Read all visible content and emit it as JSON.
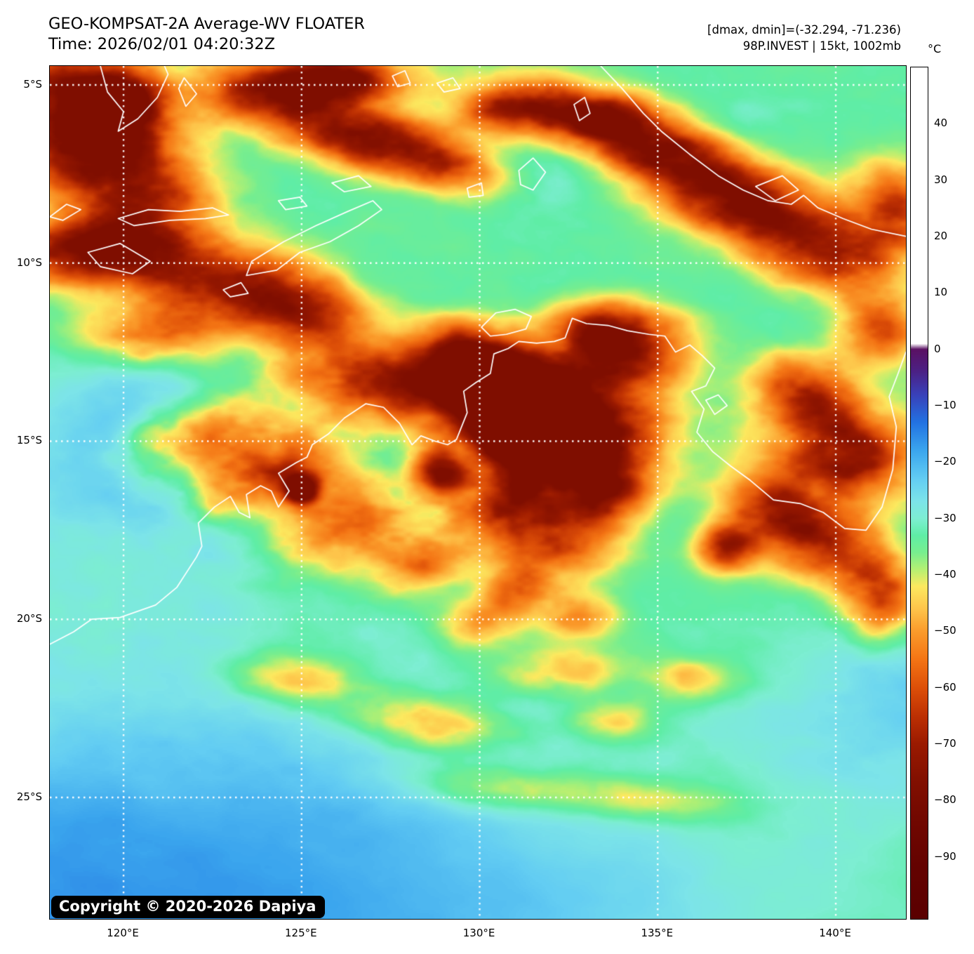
{
  "header": {
    "title": "GEO-KOMPSAT-2A Average-WV FLOATER",
    "time_line": "Time: 2026/02/01 04:20:32Z",
    "dmax_dmin_line": "[dmax, dmin]=(-32.294, -71.236)",
    "storm_line": "98P.INVEST | 15kt, 1002mb"
  },
  "map": {
    "copyright": "Copyright © 2020-2026 Dapiya",
    "bounds": {
      "lon_min": 117.93,
      "lon_max": 141.97,
      "lat_min": 4.468,
      "lat_max": 28.41
    },
    "y_axis": {
      "labels": [
        "5°S",
        "10°S",
        "15°S",
        "20°S",
        "25°S"
      ],
      "values": [
        5,
        10,
        15,
        20,
        25
      ]
    },
    "x_axis": {
      "labels": [
        "120°E",
        "125°E",
        "130°E",
        "135°E",
        "140°E"
      ],
      "values": [
        120,
        125,
        130,
        135,
        140
      ]
    },
    "gridline_color": "#ffffff",
    "coastline_color": "#ffffff",
    "frame_color": "#000000",
    "base_temp": -33.5,
    "coastlines": [
      [
        [
          117.93,
          20.7
        ],
        [
          118.6,
          20.35
        ],
        [
          119.1,
          20.0
        ],
        [
          119.9,
          19.95
        ],
        [
          120.9,
          19.6
        ],
        [
          121.5,
          19.1
        ],
        [
          122.05,
          18.25
        ],
        [
          122.2,
          17.95
        ],
        [
          122.1,
          17.3
        ],
        [
          122.55,
          16.85
        ],
        [
          123.0,
          16.55
        ],
        [
          123.25,
          17.0
        ],
        [
          123.55,
          17.15
        ],
        [
          123.45,
          16.5
        ],
        [
          123.85,
          16.25
        ],
        [
          124.15,
          16.4
        ],
        [
          124.35,
          16.85
        ],
        [
          124.65,
          16.4
        ],
        [
          124.35,
          15.9
        ],
        [
          124.85,
          15.6
        ],
        [
          125.15,
          15.45
        ],
        [
          125.3,
          15.1
        ],
        [
          125.75,
          14.8
        ],
        [
          126.2,
          14.35
        ],
        [
          126.8,
          13.95
        ],
        [
          127.3,
          14.05
        ],
        [
          127.75,
          14.5
        ],
        [
          128.1,
          15.1
        ],
        [
          128.35,
          14.85
        ],
        [
          128.75,
          15.0
        ],
        [
          129.1,
          15.1
        ],
        [
          129.35,
          14.95
        ],
        [
          129.65,
          14.2
        ],
        [
          129.55,
          13.6
        ],
        [
          129.9,
          13.35
        ],
        [
          130.3,
          13.1
        ],
        [
          130.4,
          12.55
        ],
        [
          130.8,
          12.4
        ],
        [
          131.1,
          12.2
        ],
        [
          131.6,
          12.25
        ],
        [
          132.1,
          12.2
        ],
        [
          132.4,
          12.1
        ],
        [
          132.6,
          11.55
        ],
        [
          133.0,
          11.7
        ],
        [
          133.6,
          11.75
        ],
        [
          134.15,
          11.9
        ],
        [
          134.75,
          12.0
        ],
        [
          135.2,
          12.05
        ],
        [
          135.5,
          12.5
        ],
        [
          135.9,
          12.3
        ],
        [
          136.25,
          12.6
        ],
        [
          136.6,
          12.95
        ],
        [
          136.35,
          13.45
        ],
        [
          135.95,
          13.6
        ],
        [
          136.3,
          14.1
        ],
        [
          136.1,
          14.75
        ],
        [
          136.55,
          15.3
        ],
        [
          137.05,
          15.7
        ],
        [
          137.6,
          16.1
        ],
        [
          138.25,
          16.65
        ],
        [
          139.0,
          16.75
        ],
        [
          139.65,
          17.0
        ],
        [
          140.25,
          17.45
        ],
        [
          140.85,
          17.5
        ],
        [
          141.3,
          16.85
        ],
        [
          141.6,
          15.8
        ],
        [
          141.7,
          14.6
        ],
        [
          141.5,
          13.75
        ],
        [
          141.75,
          13.1
        ],
        [
          141.97,
          12.5
        ]
      ],
      [
        [
          130.05,
          11.8
        ],
        [
          130.45,
          11.4
        ],
        [
          131.0,
          11.3
        ],
        [
          131.45,
          11.5
        ],
        [
          131.3,
          11.85
        ],
        [
          130.75,
          12.0
        ],
        [
          130.3,
          12.05
        ],
        [
          130.05,
          11.8
        ]
      ],
      [
        [
          136.35,
          13.85
        ],
        [
          136.7,
          13.7
        ],
        [
          136.95,
          14.0
        ],
        [
          136.6,
          14.25
        ],
        [
          136.35,
          13.85
        ]
      ],
      [
        [
          123.45,
          10.35
        ],
        [
          124.3,
          10.2
        ],
        [
          124.95,
          9.7
        ],
        [
          125.8,
          9.4
        ],
        [
          126.6,
          8.95
        ],
        [
          127.25,
          8.5
        ],
        [
          127.0,
          8.25
        ],
        [
          126.3,
          8.55
        ],
        [
          125.4,
          8.95
        ],
        [
          124.5,
          9.4
        ],
        [
          123.6,
          9.95
        ],
        [
          123.45,
          10.35
        ]
      ],
      [
        [
          119.0,
          9.7
        ],
        [
          119.9,
          9.45
        ],
        [
          120.75,
          9.95
        ],
        [
          120.25,
          10.3
        ],
        [
          119.35,
          10.1
        ],
        [
          119.0,
          9.7
        ]
      ],
      [
        [
          119.85,
          8.75
        ],
        [
          120.7,
          8.5
        ],
        [
          121.6,
          8.55
        ],
        [
          122.5,
          8.45
        ],
        [
          122.95,
          8.65
        ],
        [
          122.3,
          8.75
        ],
        [
          121.3,
          8.8
        ],
        [
          120.3,
          8.95
        ],
        [
          119.85,
          8.75
        ]
      ],
      [
        [
          124.35,
          8.25
        ],
        [
          124.95,
          8.15
        ],
        [
          125.15,
          8.4
        ],
        [
          124.55,
          8.5
        ],
        [
          124.35,
          8.25
        ]
      ],
      [
        [
          125.85,
          7.75
        ],
        [
          126.6,
          7.55
        ],
        [
          126.95,
          7.85
        ],
        [
          126.2,
          8.0
        ],
        [
          125.85,
          7.75
        ]
      ],
      [
        [
          129.65,
          7.9
        ],
        [
          130.05,
          7.75
        ],
        [
          130.1,
          8.1
        ],
        [
          129.7,
          8.15
        ],
        [
          129.65,
          7.9
        ]
      ],
      [
        [
          131.1,
          7.4
        ],
        [
          131.5,
          7.05
        ],
        [
          131.85,
          7.45
        ],
        [
          131.5,
          7.95
        ],
        [
          131.15,
          7.8
        ],
        [
          131.1,
          7.4
        ]
      ],
      [
        [
          132.65,
          5.55
        ],
        [
          132.95,
          5.35
        ],
        [
          133.1,
          5.8
        ],
        [
          132.8,
          6.0
        ],
        [
          132.65,
          5.55
        ]
      ],
      [
        [
          119.35,
          4.468
        ],
        [
          119.55,
          5.2
        ],
        [
          120.0,
          5.75
        ],
        [
          119.85,
          6.3
        ],
        [
          120.4,
          5.95
        ],
        [
          120.95,
          5.35
        ],
        [
          121.25,
          4.7
        ],
        [
          121.15,
          4.468
        ]
      ],
      [
        [
          121.7,
          4.8
        ],
        [
          122.05,
          5.25
        ],
        [
          121.75,
          5.6
        ],
        [
          121.55,
          5.1
        ],
        [
          121.7,
          4.8
        ]
      ],
      [
        [
          127.55,
          4.75
        ],
        [
          127.9,
          4.6
        ],
        [
          128.05,
          4.95
        ],
        [
          127.7,
          5.05
        ],
        [
          127.55,
          4.75
        ]
      ],
      [
        [
          128.8,
          4.95
        ],
        [
          129.25,
          4.8
        ],
        [
          129.45,
          5.1
        ],
        [
          129.0,
          5.2
        ],
        [
          128.8,
          4.95
        ]
      ],
      [
        [
          117.93,
          8.7
        ],
        [
          118.4,
          8.35
        ],
        [
          118.8,
          8.5
        ],
        [
          118.3,
          8.8
        ],
        [
          117.93,
          8.7
        ]
      ],
      [
        [
          122.8,
          10.75
        ],
        [
          123.3,
          10.55
        ],
        [
          123.5,
          10.85
        ],
        [
          123.0,
          10.95
        ],
        [
          122.8,
          10.75
        ]
      ],
      [
        [
          133.4,
          4.468
        ],
        [
          134.0,
          5.1
        ],
        [
          134.6,
          5.8
        ],
        [
          135.1,
          6.3
        ],
        [
          135.9,
          6.95
        ],
        [
          136.7,
          7.55
        ],
        [
          137.4,
          7.95
        ],
        [
          138.1,
          8.25
        ],
        [
          138.75,
          8.35
        ],
        [
          139.1,
          8.1
        ],
        [
          139.5,
          8.45
        ],
        [
          140.2,
          8.75
        ],
        [
          141.0,
          9.05
        ],
        [
          141.97,
          9.25
        ]
      ],
      [
        [
          137.75,
          7.85
        ],
        [
          138.5,
          7.55
        ],
        [
          138.95,
          7.95
        ],
        [
          138.3,
          8.25
        ],
        [
          137.75,
          7.85
        ]
      ]
    ],
    "cloud_blobs": [
      [
        0.03,
        0.03,
        0.13,
        0.08,
        15,
        -32
      ],
      [
        0.05,
        0.1,
        0.1,
        0.06,
        10,
        -34
      ],
      [
        0.085,
        0.045,
        0.05,
        0.035,
        0,
        -38
      ],
      [
        0.12,
        0.16,
        0.09,
        0.05,
        15,
        -26
      ],
      [
        0.02,
        0.22,
        0.08,
        0.04,
        0,
        -24
      ],
      [
        0.26,
        0.035,
        0.1,
        0.035,
        5,
        -30
      ],
      [
        0.335,
        0.015,
        0.08,
        0.03,
        0,
        -36
      ],
      [
        0.36,
        0.085,
        0.1,
        0.04,
        10,
        -34
      ],
      [
        0.46,
        0.115,
        0.08,
        0.035,
        15,
        -26
      ],
      [
        0.53,
        0.055,
        0.05,
        0.03,
        0,
        -22
      ],
      [
        0.615,
        0.055,
        0.11,
        0.035,
        10,
        -36
      ],
      [
        0.7,
        0.1,
        0.11,
        0.045,
        18,
        -33
      ],
      [
        0.8,
        0.155,
        0.1,
        0.05,
        22,
        -34
      ],
      [
        0.9,
        0.215,
        0.09,
        0.055,
        25,
        -33
      ],
      [
        0.985,
        0.17,
        0.05,
        0.06,
        0,
        -30
      ],
      [
        0.97,
        0.31,
        0.05,
        0.04,
        0,
        -26
      ],
      [
        0.08,
        0.215,
        0.09,
        0.04,
        5,
        -26
      ],
      [
        0.2,
        0.25,
        0.11,
        0.05,
        8,
        -30
      ],
      [
        0.3,
        0.285,
        0.08,
        0.04,
        8,
        -26
      ],
      [
        0.13,
        0.31,
        0.09,
        0.04,
        0,
        -22
      ],
      [
        0.34,
        0.36,
        0.09,
        0.045,
        10,
        -24
      ],
      [
        0.44,
        0.39,
        0.1,
        0.05,
        10,
        -26
      ],
      [
        0.56,
        0.4,
        0.08,
        0.05,
        5,
        -30
      ],
      [
        0.485,
        0.34,
        0.07,
        0.045,
        0,
        -34
      ],
      [
        0.545,
        0.38,
        0.09,
        0.055,
        10,
        -42
      ],
      [
        0.545,
        0.435,
        0.06,
        0.04,
        0,
        -38
      ],
      [
        0.63,
        0.42,
        0.1,
        0.06,
        10,
        -32
      ],
      [
        0.685,
        0.33,
        0.08,
        0.045,
        0,
        -30
      ],
      [
        0.645,
        0.31,
        0.06,
        0.035,
        0,
        -30
      ],
      [
        0.6,
        0.47,
        0.08,
        0.05,
        0,
        -28
      ],
      [
        0.457,
        0.478,
        0.035,
        0.035,
        0,
        -44
      ],
      [
        0.53,
        0.51,
        0.06,
        0.045,
        0,
        -34
      ],
      [
        0.175,
        0.43,
        0.09,
        0.045,
        -20,
        -28
      ],
      [
        0.255,
        0.475,
        0.1,
        0.05,
        -22,
        -34
      ],
      [
        0.35,
        0.53,
        0.09,
        0.05,
        -22,
        -30
      ],
      [
        0.43,
        0.575,
        0.07,
        0.045,
        -15,
        -26
      ],
      [
        0.293,
        0.495,
        0.02,
        0.018,
        0,
        -48
      ],
      [
        0.59,
        0.56,
        0.075,
        0.045,
        10,
        -28
      ],
      [
        0.65,
        0.5,
        0.05,
        0.04,
        0,
        -30
      ],
      [
        0.545,
        0.615,
        0.045,
        0.03,
        0,
        -22
      ],
      [
        0.62,
        0.645,
        0.045,
        0.028,
        0,
        -20
      ],
      [
        0.875,
        0.385,
        0.07,
        0.05,
        0,
        -28
      ],
      [
        0.935,
        0.455,
        0.08,
        0.055,
        0,
        -36
      ],
      [
        0.845,
        0.52,
        0.065,
        0.05,
        0,
        -30
      ],
      [
        0.91,
        0.565,
        0.075,
        0.05,
        10,
        -32
      ],
      [
        0.79,
        0.565,
        0.035,
        0.028,
        0,
        -34
      ],
      [
        0.97,
        0.625,
        0.05,
        0.05,
        0,
        -26
      ],
      [
        0.29,
        0.72,
        0.08,
        0.03,
        5,
        -15
      ],
      [
        0.44,
        0.77,
        0.09,
        0.032,
        5,
        -17
      ],
      [
        0.6,
        0.71,
        0.07,
        0.028,
        0,
        -15
      ],
      [
        0.66,
        0.765,
        0.055,
        0.024,
        0,
        -13
      ],
      [
        0.745,
        0.72,
        0.05,
        0.024,
        0,
        -13
      ],
      [
        0.5,
        0.655,
        0.05,
        0.028,
        0,
        -15
      ],
      [
        0.52,
        0.845,
        0.12,
        0.028,
        3,
        -11
      ],
      [
        0.7,
        0.86,
        0.11,
        0.026,
        3,
        -11
      ]
    ],
    "warm_zones": [
      [
        0.16,
        0.45,
        0.2,
        0.13,
        13
      ],
      [
        0.0,
        1.0,
        0.42,
        0.3,
        14
      ],
      [
        0.4,
        0.97,
        0.4,
        0.22,
        8
      ],
      [
        1.0,
        0.76,
        0.17,
        0.13,
        9
      ],
      [
        0.56,
        0.13,
        0.09,
        0.07,
        5
      ],
      [
        0.16,
        0.03,
        0.06,
        0.05,
        6
      ],
      [
        0.52,
        0.44,
        0.06,
        0.05,
        7
      ],
      [
        0.42,
        0.52,
        0.1,
        0.08,
        8
      ],
      [
        0.95,
        0.27,
        0.1,
        0.08,
        4
      ],
      [
        0.78,
        0.08,
        0.1,
        0.06,
        4
      ],
      [
        0.7,
        1.0,
        0.25,
        0.1,
        3
      ]
    ]
  },
  "colorbar": {
    "unit": "°C",
    "range": [
      50,
      -101
    ],
    "tick_values": [
      40,
      30,
      20,
      10,
      0,
      -10,
      -20,
      -30,
      -40,
      -50,
      -60,
      -70,
      -80,
      -90
    ],
    "tick_labels": [
      "40",
      "30",
      "20",
      "10",
      "0",
      "−10",
      "−20",
      "−30",
      "−40",
      "−50",
      "−60",
      "−70",
      "−80",
      "−90"
    ],
    "stops": [
      [
        50,
        "#ffffff"
      ],
      [
        1,
        "#ffffff"
      ],
      [
        0,
        "#5a1163"
      ],
      [
        -4,
        "#4b2185"
      ],
      [
        -8,
        "#3940b8"
      ],
      [
        -13,
        "#2272e2"
      ],
      [
        -18,
        "#3ba6ee"
      ],
      [
        -23,
        "#63cdf3"
      ],
      [
        -27,
        "#7ce4e9"
      ],
      [
        -30,
        "#7deed2"
      ],
      [
        -33,
        "#5feda6"
      ],
      [
        -36,
        "#77ee8f"
      ],
      [
        -39,
        "#b4f073"
      ],
      [
        -42,
        "#fce95f"
      ],
      [
        -46,
        "#fec44a"
      ],
      [
        -50,
        "#fb9b2b"
      ],
      [
        -55,
        "#f47414"
      ],
      [
        -60,
        "#dd4f08"
      ],
      [
        -65,
        "#bd3003"
      ],
      [
        -70,
        "#9a1a00"
      ],
      [
        -76,
        "#831000"
      ],
      [
        -84,
        "#700700"
      ],
      [
        -92,
        "#630200"
      ],
      [
        -101,
        "#5a0000"
      ]
    ]
  }
}
